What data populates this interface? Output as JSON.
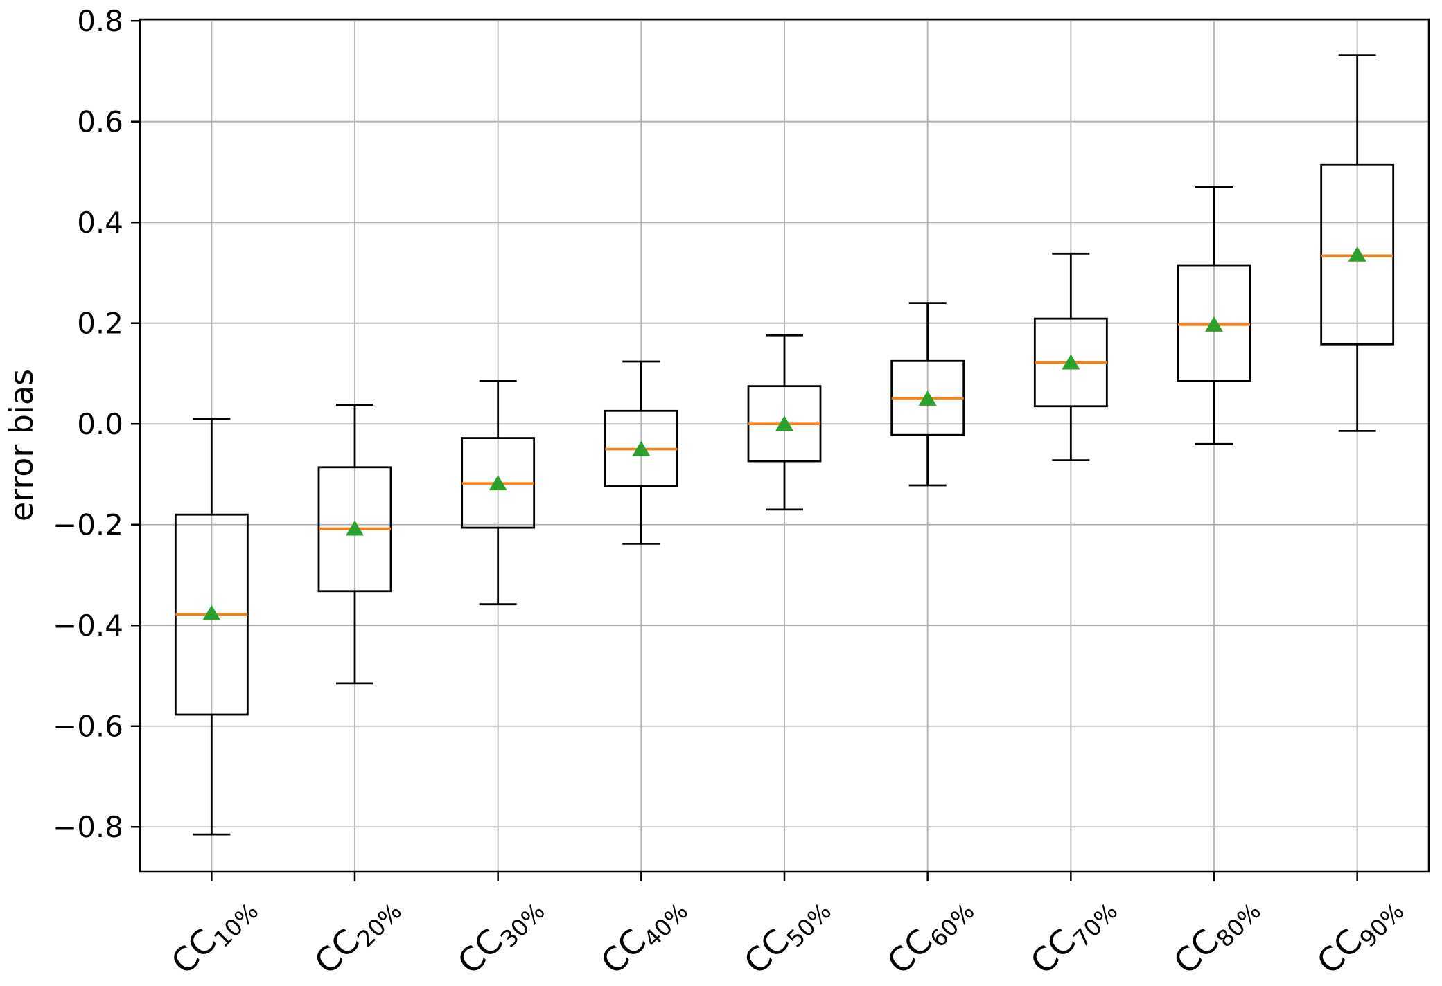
{
  "figure": {
    "background": "#ffffff"
  },
  "chart_data": {
    "type": "boxplot",
    "title": "",
    "xlabel": "",
    "ylabel": "error bias",
    "grid": true,
    "legend": "none",
    "ylim": [
      -0.889,
      0.803
    ],
    "y_ticks": [
      {
        "value": 0.8,
        "label": "0.8"
      },
      {
        "value": 0.6,
        "label": "0.6"
      },
      {
        "value": 0.4,
        "label": "0.4"
      },
      {
        "value": 0.2,
        "label": "0.2"
      },
      {
        "value": 0.0,
        "label": "0.0"
      },
      {
        "value": -0.2,
        "label": "−0.2"
      },
      {
        "value": -0.4,
        "label": "−0.4"
      },
      {
        "value": -0.6,
        "label": "−0.6"
      },
      {
        "value": -0.8,
        "label": "−0.8"
      }
    ],
    "categories": [
      {
        "main": "CC",
        "sub": "10%"
      },
      {
        "main": "CC",
        "sub": "20%"
      },
      {
        "main": "CC",
        "sub": "30%"
      },
      {
        "main": "CC",
        "sub": "40%"
      },
      {
        "main": "CC",
        "sub": "50%"
      },
      {
        "main": "CC",
        "sub": "60%"
      },
      {
        "main": "CC",
        "sub": "70%"
      },
      {
        "main": "CC",
        "sub": "80%"
      },
      {
        "main": "CC",
        "sub": "90%"
      }
    ],
    "series": [
      {
        "category": "CC10%",
        "whisker_low": -0.815,
        "q1": -0.577,
        "median": -0.378,
        "mean": -0.376,
        "q3": -0.18,
        "whisker_high": 0.01
      },
      {
        "category": "CC20%",
        "whisker_low": -0.515,
        "q1": -0.332,
        "median": -0.208,
        "mean": -0.208,
        "q3": -0.086,
        "whisker_high": 0.038
      },
      {
        "category": "CC30%",
        "whisker_low": -0.358,
        "q1": -0.206,
        "median": -0.118,
        "mean": -0.118,
        "q3": -0.028,
        "whisker_high": 0.085
      },
      {
        "category": "CC40%",
        "whisker_low": -0.238,
        "q1": -0.124,
        "median": -0.05,
        "mean": -0.05,
        "q3": 0.026,
        "whisker_high": 0.124
      },
      {
        "category": "CC50%",
        "whisker_low": -0.17,
        "q1": -0.074,
        "median": 0.0,
        "mean": 0.0,
        "q3": 0.075,
        "whisker_high": 0.176
      },
      {
        "category": "CC60%",
        "whisker_low": -0.122,
        "q1": -0.022,
        "median": 0.051,
        "mean": 0.05,
        "q3": 0.125,
        "whisker_high": 0.24
      },
      {
        "category": "CC70%",
        "whisker_low": -0.072,
        "q1": 0.035,
        "median": 0.122,
        "mean": 0.122,
        "q3": 0.209,
        "whisker_high": 0.338
      },
      {
        "category": "CC80%",
        "whisker_low": -0.04,
        "q1": 0.085,
        "median": 0.197,
        "mean": 0.197,
        "q3": 0.315,
        "whisker_high": 0.47
      },
      {
        "category": "CC90%",
        "whisker_low": -0.014,
        "q1": 0.158,
        "median": 0.334,
        "mean": 0.336,
        "q3": 0.514,
        "whisker_high": 0.732
      }
    ],
    "colors": {
      "box_line": "#000000",
      "whisker_line": "#000000",
      "median_line": "#ff7f0e",
      "mean_marker": "#2ca02c",
      "grid_line": "#b0b0b0",
      "spine": "#000000",
      "tick_label": "#000000"
    }
  }
}
